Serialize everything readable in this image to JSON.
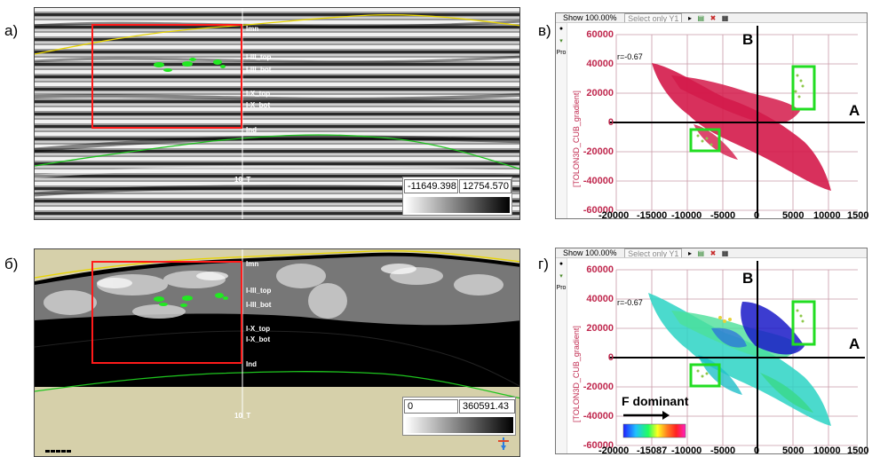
{
  "panels": {
    "a": {
      "letter": "а)",
      "colorbar": {
        "min": "-11649.398",
        "max": "12754.570"
      }
    },
    "b": {
      "letter": "б)",
      "colorbar": {
        "min": "0",
        "max": "360591.43"
      }
    },
    "v": {
      "letter": "в)"
    },
    "g": {
      "letter": "г)"
    }
  },
  "horizons": {
    "a": [
      "Imn",
      "I-III_top",
      "I-III_bot",
      "I-X_top",
      "I-X_bot",
      "Ind",
      "10_T"
    ],
    "b": [
      "Imn",
      "I-III_top",
      "I-III_bot",
      "I-X_top",
      "I-X_bot",
      "Ind",
      "10_T"
    ]
  },
  "crossplot": {
    "toolbar_show": "Show 100.00%",
    "toolbar_select": "Select only Y1",
    "ylabel": "[TOLON3D_CUB_gradient]",
    "r_label": "r=-0.67",
    "label_A": "A",
    "label_B": "B",
    "y_ticks": [
      "60000",
      "40000",
      "20000",
      "0",
      "-20000",
      "-40000",
      "-60000"
    ],
    "x_ticks": [
      "-20000",
      "-15000",
      "-10000",
      "-5000",
      "0",
      "5000",
      "10000",
      "1500"
    ],
    "x_ticks_g": [
      "-20000",
      "-15087",
      "-10000",
      "-5000",
      "0",
      "5000",
      "10000",
      "1500"
    ],
    "legend_label": "F dominant"
  },
  "colors": {
    "red_box": "#ff1a1a",
    "green_box": "#22dd22",
    "scatter_red": "#d41a4a",
    "axis_pink": "#c0284e"
  }
}
